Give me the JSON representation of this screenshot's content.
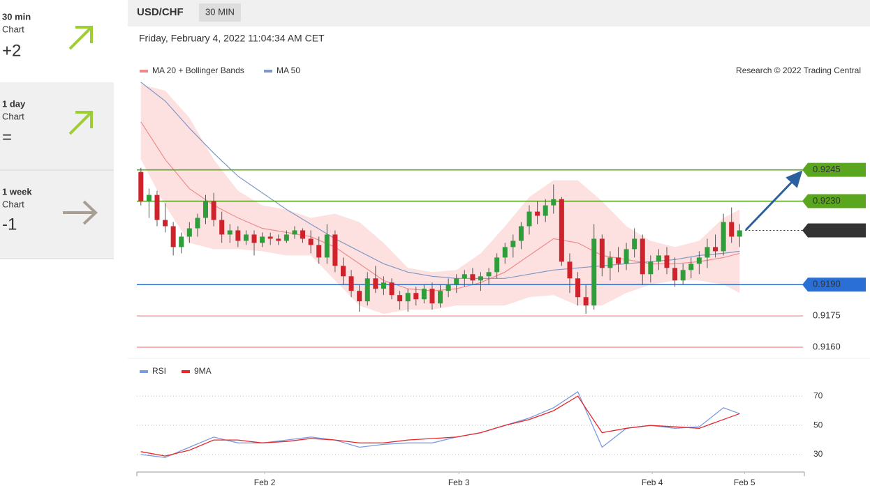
{
  "sidebar": [
    {
      "period": "30 min",
      "caption": "Chart",
      "score": "+2"
    },
    {
      "period": "1 day",
      "caption": "Chart",
      "score": "="
    },
    {
      "period": "1 week",
      "caption": "Chart",
      "score": "-1"
    }
  ],
  "header": {
    "symbol": "USD/CHF",
    "timeframe": "30 MIN",
    "timestamp": "Friday, February 4, 2022 11:04:34 AM CET",
    "credit": "Research © 2022 Trading Central"
  },
  "chart_data": [
    {
      "type": "candlestick",
      "xlim": [
        -0.5,
        82
      ],
      "ylim": [
        0.9156,
        0.9288
      ],
      "up_color": "#2e9e3a",
      "down_color": "#d0222a",
      "x": [
        0,
        1,
        2,
        3,
        4,
        5,
        6,
        7,
        8,
        9,
        10,
        11,
        12,
        13,
        14,
        15,
        16,
        17,
        18,
        19,
        20,
        21,
        22,
        23,
        24,
        25,
        26,
        27,
        28,
        29,
        30,
        31,
        32,
        33,
        34,
        35,
        36,
        37,
        38,
        39,
        40,
        41,
        42,
        43,
        44,
        45,
        46,
        47,
        48,
        49,
        50,
        51,
        52,
        53,
        54,
        55,
        56,
        57,
        58,
        59,
        60,
        61,
        62,
        63,
        64,
        65,
        66,
        67,
        68,
        69,
        70,
        71,
        72,
        73,
        74
      ],
      "ohlc": [
        [
          0.9244,
          0.9246,
          0.9228,
          0.923
        ],
        [
          0.923,
          0.9236,
          0.9222,
          0.9233
        ],
        [
          0.9233,
          0.9235,
          0.9218,
          0.9221
        ],
        [
          0.9221,
          0.9229,
          0.9215,
          0.9218
        ],
        [
          0.9218,
          0.922,
          0.9204,
          0.9208
        ],
        [
          0.9208,
          0.9215,
          0.9205,
          0.9213
        ],
        [
          0.9213,
          0.922,
          0.921,
          0.9217
        ],
        [
          0.9217,
          0.9224,
          0.9213,
          0.9222
        ],
        [
          0.9222,
          0.9233,
          0.9219,
          0.923
        ],
        [
          0.923,
          0.9234,
          0.9218,
          0.9221
        ],
        [
          0.9221,
          0.9225,
          0.921,
          0.9214
        ],
        [
          0.9214,
          0.9219,
          0.921,
          0.9216
        ],
        [
          0.9216,
          0.9218,
          0.9208,
          0.9211
        ],
        [
          0.9211,
          0.9216,
          0.9209,
          0.9214
        ],
        [
          0.9214,
          0.9216,
          0.9204,
          0.921
        ],
        [
          0.921,
          0.9215,
          0.9208,
          0.9213
        ],
        [
          0.9213,
          0.9215,
          0.9209,
          0.9212
        ],
        [
          0.9212,
          0.9214,
          0.9209,
          0.9211
        ],
        [
          0.9211,
          0.9216,
          0.921,
          0.9214
        ],
        [
          0.9214,
          0.9218,
          0.9212,
          0.9216
        ],
        [
          0.9216,
          0.9217,
          0.921,
          0.9212
        ],
        [
          0.9212,
          0.9216,
          0.9205,
          0.9209
        ],
        [
          0.9209,
          0.9213,
          0.92,
          0.9203
        ],
        [
          0.9203,
          0.9219,
          0.92,
          0.9214
        ],
        [
          0.9214,
          0.9216,
          0.9196,
          0.9199
        ],
        [
          0.9199,
          0.9203,
          0.919,
          0.9194
        ],
        [
          0.9194,
          0.9197,
          0.9184,
          0.9187
        ],
        [
          0.9187,
          0.919,
          0.9177,
          0.9182
        ],
        [
          0.9182,
          0.9196,
          0.918,
          0.9193
        ],
        [
          0.9193,
          0.9199,
          0.9186,
          0.9188
        ],
        [
          0.9188,
          0.9194,
          0.9185,
          0.9191
        ],
        [
          0.9191,
          0.9193,
          0.9183,
          0.9185
        ],
        [
          0.9185,
          0.9187,
          0.9178,
          0.9182
        ],
        [
          0.9182,
          0.9188,
          0.9177,
          0.9186
        ],
        [
          0.9186,
          0.9189,
          0.918,
          0.9183
        ],
        [
          0.9183,
          0.919,
          0.9181,
          0.9188
        ],
        [
          0.9188,
          0.9191,
          0.9178,
          0.9181
        ],
        [
          0.9181,
          0.919,
          0.9179,
          0.9187
        ],
        [
          0.9187,
          0.9193,
          0.9184,
          0.919
        ],
        [
          0.919,
          0.9195,
          0.9186,
          0.9193
        ],
        [
          0.9193,
          0.9197,
          0.9189,
          0.9195
        ],
        [
          0.9195,
          0.9198,
          0.919,
          0.9192
        ],
        [
          0.9192,
          0.9196,
          0.9187,
          0.9194
        ],
        [
          0.9194,
          0.9198,
          0.919,
          0.9196
        ],
        [
          0.9196,
          0.9205,
          0.9193,
          0.9203
        ],
        [
          0.9203,
          0.921,
          0.92,
          0.9208
        ],
        [
          0.9208,
          0.9214,
          0.9203,
          0.9211
        ],
        [
          0.9211,
          0.922,
          0.9207,
          0.9218
        ],
        [
          0.9218,
          0.9228,
          0.9214,
          0.9225
        ],
        [
          0.9225,
          0.923,
          0.9219,
          0.9223
        ],
        [
          0.9223,
          0.9231,
          0.922,
          0.9228
        ],
        [
          0.9228,
          0.9238,
          0.9224,
          0.9231
        ],
        [
          0.9231,
          0.9232,
          0.9199,
          0.9201
        ],
        [
          0.9201,
          0.9205,
          0.9186,
          0.9193
        ],
        [
          0.9193,
          0.9196,
          0.918,
          0.9184
        ],
        [
          0.9184,
          0.919,
          0.9176,
          0.918
        ],
        [
          0.918,
          0.9219,
          0.9178,
          0.9212
        ],
        [
          0.9212,
          0.9214,
          0.9194,
          0.9198
        ],
        [
          0.9198,
          0.9206,
          0.9192,
          0.9203
        ],
        [
          0.9203,
          0.9208,
          0.9196,
          0.92
        ],
        [
          0.92,
          0.921,
          0.9197,
          0.9207
        ],
        [
          0.9207,
          0.9217,
          0.9203,
          0.9212
        ],
        [
          0.9212,
          0.9214,
          0.919,
          0.9195
        ],
        [
          0.9195,
          0.9204,
          0.9191,
          0.9201
        ],
        [
          0.9201,
          0.9207,
          0.9197,
          0.9204
        ],
        [
          0.9204,
          0.9208,
          0.9195,
          0.9198
        ],
        [
          0.9198,
          0.9203,
          0.9189,
          0.9192
        ],
        [
          0.9192,
          0.92,
          0.919,
          0.9197
        ],
        [
          0.9197,
          0.9203,
          0.9193,
          0.92
        ],
        [
          0.92,
          0.9206,
          0.9195,
          0.9203
        ],
        [
          0.9203,
          0.9212,
          0.9198,
          0.9208
        ],
        [
          0.9208,
          0.9214,
          0.9203,
          0.9206
        ],
        [
          0.9206,
          0.9224,
          0.9204,
          0.922
        ],
        [
          0.922,
          0.9227,
          0.921,
          0.9213
        ],
        [
          0.9213,
          0.9219,
          0.9208,
          0.9216
        ]
      ],
      "overlay_x": [
        0,
        3,
        6,
        9,
        12,
        15,
        18,
        21,
        24,
        27,
        30,
        33,
        36,
        39,
        42,
        45,
        48,
        51,
        54,
        57,
        60,
        63,
        66,
        69,
        72,
        74
      ],
      "overlays": [
        {
          "name": "MA 20 + Bollinger Bands",
          "color": "#f08a8a",
          "band_color": "#fde1e1",
          "values": [
            0.9268,
            0.925,
            0.9236,
            0.9228,
            0.9222,
            0.9217,
            0.9215,
            0.9213,
            0.9208,
            0.92,
            0.9192,
            0.9188,
            0.9187,
            0.9188,
            0.9191,
            0.9196,
            0.9204,
            0.9212,
            0.921,
            0.9204,
            0.9202,
            0.92,
            0.92,
            0.9201,
            0.9203,
            0.9205
          ],
          "upper": [
            0.9286,
            0.9283,
            0.927,
            0.925,
            0.9235,
            0.9228,
            0.9226,
            0.9222,
            0.9224,
            0.922,
            0.921,
            0.9198,
            0.9196,
            0.9197,
            0.9205,
            0.9218,
            0.9232,
            0.924,
            0.924,
            0.923,
            0.9218,
            0.9211,
            0.9208,
            0.9211,
            0.9222,
            0.9226
          ],
          "lower": [
            0.925,
            0.9228,
            0.921,
            0.9207,
            0.9207,
            0.9206,
            0.9204,
            0.9204,
            0.9192,
            0.918,
            0.9176,
            0.9178,
            0.9178,
            0.918,
            0.918,
            0.918,
            0.9184,
            0.9185,
            0.918,
            0.918,
            0.9186,
            0.919,
            0.9192,
            0.9192,
            0.919,
            0.9186
          ]
        },
        {
          "name": "MA 50",
          "color": "#7f97c4",
          "values": [
            0.9287,
            0.9278,
            0.9265,
            0.9253,
            0.9242,
            0.9234,
            0.9226,
            0.9219,
            0.9212,
            0.9206,
            0.92,
            0.9196,
            0.9194,
            0.9193,
            0.9193,
            0.9193,
            0.9195,
            0.9197,
            0.9198,
            0.9199,
            0.92,
            0.9201,
            0.9202,
            0.9204,
            0.9205,
            0.9206
          ]
        }
      ],
      "levels": [
        {
          "value": 0.9245,
          "color": "#5aa61e",
          "tag": true
        },
        {
          "value": 0.923,
          "label": "0.9230",
          "color": "#5aa61e",
          "tag": true
        },
        {
          "value": 0.9216,
          "color": "#333333",
          "tag": true,
          "dotted": true
        },
        {
          "value": 0.919,
          "label": "0.9190",
          "color": "#2a6fd6",
          "tag": true
        },
        {
          "value": 0.9175,
          "color": "#f4a3a3",
          "tag": false
        },
        {
          "value": 0.916,
          "label": "0.9160",
          "color": "#f4a3a3",
          "tag": false
        }
      ]
    },
    {
      "type": "line",
      "xlim": [
        -0.5,
        82
      ],
      "ylim": [
        20,
        82
      ],
      "x": [
        0,
        3,
        6,
        9,
        12,
        15,
        18,
        21,
        24,
        27,
        30,
        33,
        36,
        39,
        42,
        45,
        48,
        51,
        54,
        57,
        60,
        63,
        66,
        69,
        72,
        74
      ],
      "series": [
        {
          "name": "RSI",
          "color": "#7b9be0",
          "values": [
            30,
            28,
            35,
            42,
            38,
            38,
            40,
            42,
            40,
            35,
            37,
            38,
            38,
            42,
            45,
            50,
            55,
            62,
            73,
            35,
            48,
            50,
            48,
            49,
            62,
            58
          ]
        },
        {
          "name": "9MA",
          "color": "#e8262a",
          "values": [
            32,
            29,
            33,
            40,
            40,
            38,
            39,
            41,
            40,
            38,
            38,
            40,
            41,
            42,
            45,
            50,
            54,
            60,
            70,
            45,
            48,
            50,
            49,
            48,
            54,
            58
          ]
        }
      ],
      "yticks": [
        70,
        50,
        30
      ],
      "xticks": [
        {
          "value": 15.3,
          "label": "Feb 2"
        },
        {
          "value": 39.3,
          "label": "Feb 3"
        },
        {
          "value": 63.2,
          "label": "Feb 4"
        },
        {
          "value": 74.6,
          "label": "Feb 5"
        }
      ]
    }
  ]
}
